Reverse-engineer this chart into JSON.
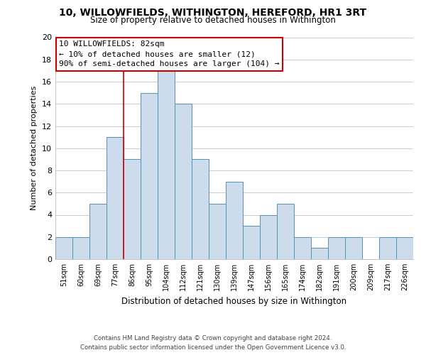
{
  "title": "10, WILLOWFIELDS, WITHINGTON, HEREFORD, HR1 3RT",
  "subtitle": "Size of property relative to detached houses in Withington",
  "xlabel": "Distribution of detached houses by size in Withington",
  "ylabel": "Number of detached properties",
  "bar_labels": [
    "51sqm",
    "60sqm",
    "69sqm",
    "77sqm",
    "86sqm",
    "95sqm",
    "104sqm",
    "112sqm",
    "121sqm",
    "130sqm",
    "139sqm",
    "147sqm",
    "156sqm",
    "165sqm",
    "174sqm",
    "182sqm",
    "191sqm",
    "200sqm",
    "209sqm",
    "217sqm",
    "226sqm"
  ],
  "bar_values": [
    2,
    2,
    5,
    11,
    9,
    15,
    17,
    14,
    9,
    5,
    7,
    3,
    4,
    5,
    2,
    1,
    2,
    2,
    0,
    2,
    2
  ],
  "bar_color": "#ccdcec",
  "bar_edgecolor": "#5590b8",
  "ylim": [
    0,
    20
  ],
  "yticks": [
    0,
    2,
    4,
    6,
    8,
    10,
    12,
    14,
    16,
    18,
    20
  ],
  "vline_x": 3.5,
  "vline_color": "#cc0000",
  "annotation_line1": "10 WILLOWFIELDS: 82sqm",
  "annotation_line2": "← 10% of detached houses are smaller (12)",
  "annotation_line3": "90% of semi-detached houses are larger (104) →",
  "footnote1": "Contains HM Land Registry data © Crown copyright and database right 2024.",
  "footnote2": "Contains public sector information licensed under the Open Government Licence v3.0.",
  "background_color": "#ffffff",
  "grid_color": "#c0cfe0"
}
